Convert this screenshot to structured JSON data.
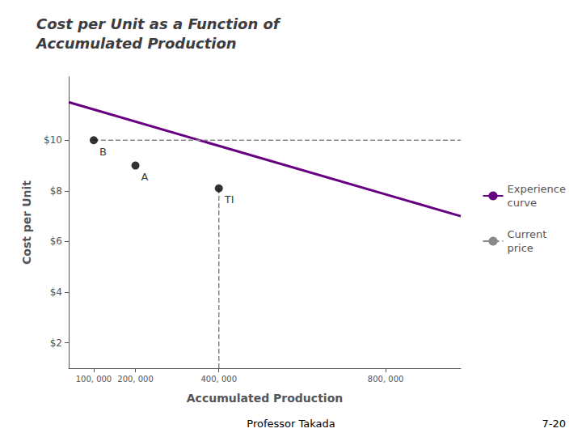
{
  "chart_data": {
    "type": "line",
    "title": "Cost per Unit as a Function of\nAccumulated Production",
    "xlabel": "Accumulated Production",
    "ylabel": "Cost per Unit",
    "xlim": [
      40000,
      980000
    ],
    "ylim": [
      1.0,
      12.5
    ],
    "xticks": [
      {
        "value": 100000,
        "label": "100, 000"
      },
      {
        "value": 200000,
        "label": "200, 000"
      },
      {
        "value": 400000,
        "label": "400, 000"
      },
      {
        "value": 800000,
        "label": "800, 000"
      }
    ],
    "yticks": [
      {
        "value": 2,
        "label": "$2"
      },
      {
        "value": 4,
        "label": "$4"
      },
      {
        "value": 6,
        "label": "$6"
      },
      {
        "value": 8,
        "label": "$8"
      },
      {
        "value": 10,
        "label": "$10"
      }
    ],
    "grid": false,
    "legend": "right",
    "series": [
      {
        "name": "Experience\ncurve",
        "color": "#660080",
        "x": [
          40000,
          980000
        ],
        "values": [
          11.5,
          7.0
        ]
      },
      {
        "name": "Current\nprice",
        "color": "#888888",
        "line_style": "dashed",
        "x": [
          100000,
          980000
        ],
        "values": [
          10.0,
          10.0
        ]
      },
      {
        "color": "#888888",
        "line_style": "dashed",
        "x": [
          400000,
          400000
        ],
        "values": [
          1.0,
          8.1
        ]
      },
      {
        "type": "scatter",
        "color": "black",
        "marker": "circle",
        "x": [
          100000,
          200000,
          400000
        ],
        "values": [
          10.0,
          9.0,
          8.1
        ]
      }
    ],
    "annotations": [
      {
        "text": "B",
        "x": 100000,
        "y": 10.0
      },
      {
        "text": "A",
        "x": 200000,
        "y": 9.0
      },
      {
        "text": "TI",
        "x": 400000,
        "y": 8.1
      }
    ],
    "footnotes": [
      "Professor Takada",
      "7-20"
    ]
  }
}
